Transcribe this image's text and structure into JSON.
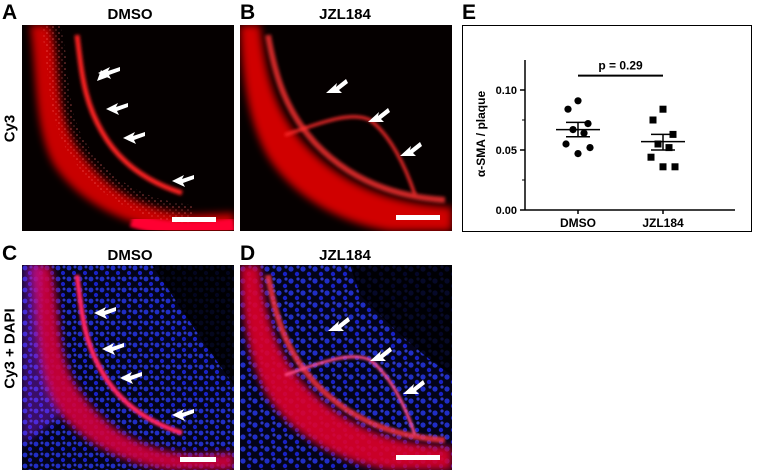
{
  "panels": {
    "A": {
      "letter": "A",
      "title": "DMSO"
    },
    "B": {
      "letter": "B",
      "title": "JZL184"
    },
    "C": {
      "letter": "C",
      "title": "DMSO"
    },
    "D": {
      "letter": "D",
      "title": "JZL184"
    },
    "E": {
      "letter": "E"
    }
  },
  "row_labels": {
    "top": "Cy3",
    "bottom": "Cy3 + DAPI"
  },
  "colors": {
    "cy3_red": "#ff1a1a",
    "dapi_blue": "#1f2bff",
    "arrow": "#ffffff",
    "scale_bar": "#ffffff"
  },
  "chart_data": {
    "type": "scatter",
    "ylabel": "α-SMA / plaque",
    "xlabel": "",
    "categories": [
      "DMSO",
      "JZL184"
    ],
    "ylim": [
      0.0,
      0.125
    ],
    "yticks": [
      "0.00",
      "0.05",
      "0.10"
    ],
    "annotation": "p = 0.29",
    "series": [
      {
        "category": "DMSO",
        "marker": "circle",
        "values": [
          0.091,
          0.084,
          0.072,
          0.067,
          0.064,
          0.055,
          0.052,
          0.047
        ],
        "mean": 0.067,
        "sem_upper": 0.073,
        "sem_lower": 0.061
      },
      {
        "category": "JZL184",
        "marker": "square",
        "values": [
          0.084,
          0.075,
          0.063,
          0.055,
          0.052,
          0.044,
          0.036,
          0.036
        ],
        "mean": 0.057,
        "sem_upper": 0.063,
        "sem_lower": 0.05
      }
    ]
  }
}
